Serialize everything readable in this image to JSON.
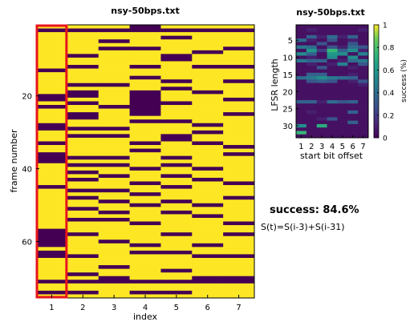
{
  "colors": {
    "zero": "#440154",
    "one": "#fde725",
    "highlight": "#e8151b"
  },
  "chart_data": [
    {
      "type": "heatmap",
      "title": "nsy-50bps.txt",
      "xlabel": "index",
      "ylabel": "frame number",
      "x": [
        1,
        2,
        3,
        4,
        5,
        6,
        7
      ],
      "xticks": [
        "1",
        "2",
        "3",
        "4",
        "5",
        "6",
        "7"
      ],
      "yticks": [
        "20",
        "40",
        "60"
      ],
      "ylim": [
        0.5,
        75.5
      ],
      "highlight_column": 1,
      "rows": [
        [
          1,
          1,
          1,
          0,
          1,
          1,
          1
        ],
        [
          0,
          0,
          0,
          0,
          0,
          0,
          0
        ],
        [
          1,
          1,
          1,
          1,
          1,
          1,
          1
        ],
        [
          1,
          1,
          1,
          1,
          0,
          1,
          1
        ],
        [
          1,
          1,
          0,
          1,
          1,
          1,
          1
        ],
        [
          1,
          1,
          1,
          1,
          1,
          1,
          1
        ],
        [
          1,
          1,
          0,
          0,
          1,
          1,
          0
        ],
        [
          1,
          1,
          1,
          1,
          1,
          0,
          1
        ],
        [
          1,
          0,
          1,
          1,
          0,
          1,
          1
        ],
        [
          1,
          1,
          1,
          1,
          0,
          1,
          1
        ],
        [
          1,
          1,
          1,
          1,
          1,
          1,
          1
        ],
        [
          1,
          0,
          1,
          0,
          1,
          0,
          0
        ],
        [
          0,
          1,
          1,
          1,
          1,
          1,
          1
        ],
        [
          1,
          1,
          1,
          1,
          1,
          1,
          1
        ],
        [
          1,
          1,
          1,
          0,
          1,
          1,
          1
        ],
        [
          1,
          1,
          1,
          1,
          0,
          1,
          0
        ],
        [
          1,
          0,
          0,
          1,
          1,
          1,
          1
        ],
        [
          1,
          1,
          1,
          1,
          0,
          1,
          1
        ],
        [
          1,
          0,
          1,
          0,
          1,
          0,
          1
        ],
        [
          0,
          0,
          1,
          0,
          1,
          1,
          1
        ],
        [
          0,
          1,
          1,
          0,
          1,
          1,
          0
        ],
        [
          1,
          0,
          1,
          0,
          0,
          1,
          1
        ],
        [
          0,
          1,
          0,
          0,
          1,
          1,
          1
        ],
        [
          1,
          1,
          1,
          0,
          1,
          1,
          1
        ],
        [
          1,
          0,
          1,
          0,
          1,
          1,
          0
        ],
        [
          1,
          0,
          1,
          1,
          1,
          1,
          1
        ],
        [
          1,
          1,
          1,
          0,
          0,
          1,
          1
        ],
        [
          0,
          1,
          1,
          1,
          1,
          0,
          1
        ],
        [
          0,
          0,
          0,
          1,
          1,
          1,
          1
        ],
        [
          1,
          1,
          1,
          1,
          1,
          0,
          1
        ],
        [
          1,
          0,
          0,
          1,
          0,
          1,
          1
        ],
        [
          1,
          1,
          1,
          1,
          0,
          1,
          1
        ],
        [
          0,
          1,
          1,
          0,
          1,
          0,
          1
        ],
        [
          1,
          1,
          1,
          1,
          1,
          1,
          0
        ],
        [
          1,
          1,
          1,
          0,
          1,
          1,
          1
        ],
        [
          0,
          1,
          1,
          1,
          1,
          1,
          0
        ],
        [
          0,
          0,
          0,
          1,
          0,
          1,
          1
        ],
        [
          0,
          1,
          1,
          1,
          1,
          1,
          1
        ],
        [
          1,
          0,
          0,
          1,
          0,
          1,
          1
        ],
        [
          1,
          1,
          1,
          0,
          1,
          0,
          1
        ],
        [
          1,
          0,
          1,
          1,
          1,
          1,
          1
        ],
        [
          1,
          1,
          0,
          1,
          0,
          1,
          1
        ],
        [
          1,
          0,
          1,
          1,
          1,
          0,
          1
        ],
        [
          1,
          1,
          1,
          0,
          1,
          1,
          0
        ],
        [
          0,
          1,
          1,
          1,
          0,
          1,
          1
        ],
        [
          1,
          0,
          0,
          1,
          1,
          1,
          1
        ],
        [
          1,
          1,
          1,
          0,
          1,
          1,
          1
        ],
        [
          1,
          0,
          1,
          1,
          1,
          1,
          0
        ],
        [
          1,
          1,
          0,
          1,
          0,
          1,
          1
        ],
        [
          1,
          1,
          1,
          0,
          1,
          0,
          1
        ],
        [
          1,
          0,
          1,
          1,
          1,
          1,
          1
        ],
        [
          1,
          1,
          0,
          1,
          0,
          1,
          1
        ],
        [
          1,
          1,
          1,
          1,
          1,
          0,
          1
        ],
        [
          1,
          0,
          0,
          1,
          1,
          1,
          1
        ],
        [
          1,
          1,
          1,
          0,
          1,
          1,
          0
        ],
        [
          1,
          1,
          1,
          1,
          1,
          1,
          1
        ],
        [
          0,
          1,
          1,
          1,
          1,
          1,
          1
        ],
        [
          0,
          0,
          1,
          1,
          0,
          1,
          0
        ],
        [
          0,
          1,
          1,
          1,
          1,
          1,
          1
        ],
        [
          0,
          1,
          0,
          1,
          1,
          1,
          1
        ],
        [
          0,
          1,
          1,
          0,
          1,
          0,
          1
        ],
        [
          1,
          1,
          1,
          1,
          1,
          1,
          1
        ],
        [
          0,
          1,
          1,
          0,
          0,
          1,
          1
        ],
        [
          0,
          0,
          1,
          1,
          1,
          0,
          0
        ],
        [
          1,
          1,
          1,
          1,
          1,
          1,
          1
        ],
        [
          1,
          1,
          1,
          1,
          1,
          1,
          1
        ],
        [
          1,
          1,
          0,
          1,
          1,
          1,
          1
        ],
        [
          1,
          1,
          1,
          1,
          0,
          1,
          1
        ],
        [
          1,
          0,
          1,
          1,
          1,
          1,
          1
        ],
        [
          1,
          1,
          0,
          1,
          1,
          0,
          0
        ],
        [
          0,
          0,
          0,
          0,
          0,
          0,
          0
        ],
        [
          1,
          1,
          1,
          1,
          1,
          1,
          1
        ],
        [
          1,
          1,
          1,
          1,
          1,
          1,
          1
        ],
        [
          0,
          0,
          1,
          0,
          0,
          1,
          1
        ],
        [
          1,
          1,
          1,
          1,
          1,
          1,
          1
        ]
      ]
    },
    {
      "type": "heatmap",
      "title": "nsy-50bps.txt",
      "xlabel": "start bit offset",
      "ylabel": "LFSR length",
      "x": [
        1,
        2,
        3,
        4,
        5,
        6,
        7
      ],
      "y": [
        1,
        2,
        3,
        4,
        5,
        6,
        7,
        8,
        9,
        10,
        11,
        12,
        13,
        14,
        15,
        16,
        17,
        18,
        19,
        20,
        21,
        22,
        23,
        24,
        25,
        26,
        27,
        28,
        29,
        30,
        31,
        32,
        33
      ],
      "xticks": [
        "1",
        "2",
        "3",
        "4",
        "5",
        "6",
        "7"
      ],
      "yticks": [
        "5",
        "10",
        "15",
        "20",
        "25",
        "30"
      ],
      "colorbar": {
        "label": "success (%)",
        "ticks": [
          "0",
          "0.2",
          "0.4",
          "0.6",
          "0.8",
          "1"
        ],
        "range": [
          0,
          1
        ]
      },
      "values": [
        [
          0.05,
          0.05,
          0.05,
          0.05,
          0.05,
          0.05,
          0.05
        ],
        [
          0.05,
          0.1,
          0.05,
          0.05,
          0.05,
          0.05,
          0.1
        ],
        [
          0.05,
          0.05,
          0.05,
          0.05,
          0.05,
          0.05,
          0.05
        ],
        [
          0.05,
          0.35,
          0.1,
          0.4,
          0.1,
          0.35,
          0.05
        ],
        [
          0.4,
          0.1,
          0.05,
          0.3,
          0.05,
          0.1,
          0.05
        ],
        [
          0.05,
          0.05,
          0.3,
          0.05,
          0.05,
          0.3,
          0.05
        ],
        [
          0.45,
          0.4,
          0.05,
          0.3,
          0.1,
          0.4,
          0.3
        ],
        [
          0.05,
          0.6,
          0.2,
          0.75,
          0.35,
          0.55,
          0.1
        ],
        [
          0.55,
          0.35,
          0.05,
          0.6,
          0.55,
          0.05,
          0.5
        ],
        [
          0.05,
          0.1,
          0.05,
          0.55,
          0.05,
          0.55,
          0.05
        ],
        [
          0.45,
          0.35,
          0.35,
          0.05,
          0.1,
          0.4,
          0.45
        ],
        [
          0.05,
          0.1,
          0.05,
          0.1,
          0.5,
          0.05,
          0.3
        ],
        [
          0.05,
          0.05,
          0.3,
          0.05,
          0.05,
          0.1,
          0.05
        ],
        [
          0.05,
          0.05,
          0.05,
          0.05,
          0.05,
          0.05,
          0.05
        ],
        [
          0.05,
          0.35,
          0.35,
          0.05,
          0.05,
          0.1,
          0.05
        ],
        [
          0.4,
          0.45,
          0.55,
          0.45,
          0.4,
          0.35,
          0.05
        ],
        [
          0.05,
          0.3,
          0.35,
          0.3,
          0.05,
          0.1,
          0.3
        ],
        [
          0.05,
          0.05,
          0.05,
          0.05,
          0.05,
          0.05,
          0.1
        ],
        [
          0.05,
          0.05,
          0.05,
          0.05,
          0.05,
          0.05,
          0.05
        ],
        [
          0.05,
          0.05,
          0.05,
          0.05,
          0.05,
          0.05,
          0.05
        ],
        [
          0.05,
          0.05,
          0.05,
          0.05,
          0.05,
          0.05,
          0.05
        ],
        [
          0.05,
          0.05,
          0.05,
          0.05,
          0.05,
          0.05,
          0.05
        ],
        [
          0.35,
          0.35,
          0.1,
          0.4,
          0.3,
          0.35,
          0.05
        ],
        [
          0.05,
          0.05,
          0.05,
          0.05,
          0.05,
          0.05,
          0.05
        ],
        [
          0.05,
          0.05,
          0.05,
          0.05,
          0.05,
          0.05,
          0.05
        ],
        [
          0.05,
          0.1,
          0.05,
          0.05,
          0.05,
          0.35,
          0.05
        ],
        [
          0.05,
          0.05,
          0.05,
          0.05,
          0.05,
          0.05,
          0.05
        ],
        [
          0.05,
          0.05,
          0.1,
          0.3,
          0.05,
          0.05,
          0.05
        ],
        [
          0.05,
          0.05,
          0.05,
          0.05,
          0.05,
          0.35,
          0.05
        ],
        [
          0.55,
          0.05,
          0.7,
          0.05,
          0.05,
          0.05,
          0.05
        ],
        [
          0.05,
          0.05,
          0.05,
          0.05,
          0.05,
          0.05,
          0.05
        ],
        [
          0.75,
          0.05,
          0.05,
          0.05,
          0.05,
          0.05,
          0.05
        ],
        [
          0.05,
          0.05,
          0.05,
          0.05,
          0.05,
          0.05,
          0.05
        ]
      ]
    }
  ],
  "result": {
    "text": "success: 84.6%",
    "formula": "S(t)=S(i-3)+S(i-31)"
  }
}
